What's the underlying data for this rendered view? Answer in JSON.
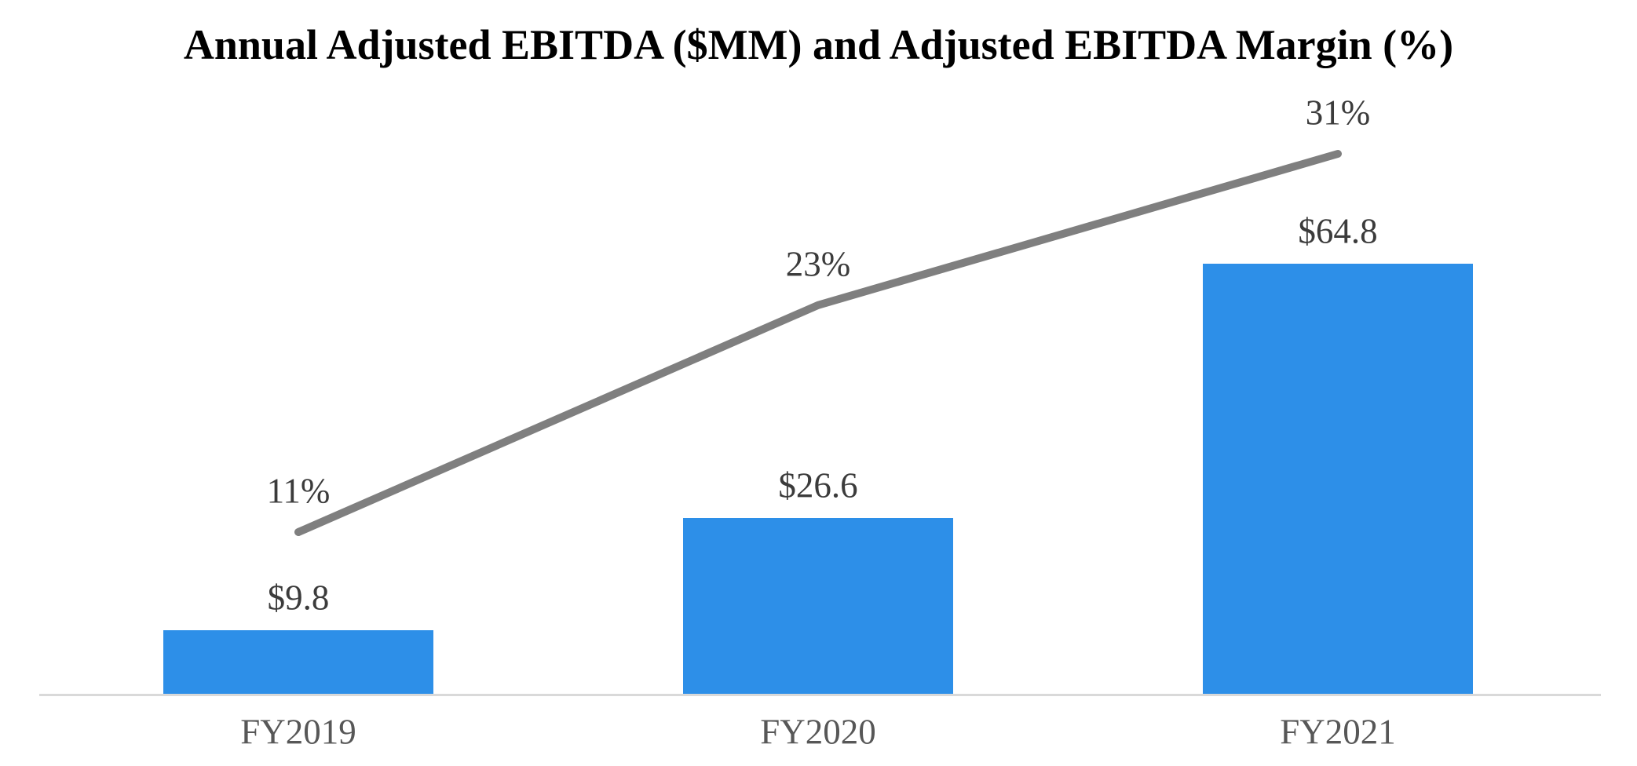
{
  "chart": {
    "title": "Annual Adjusted EBITDA ($MM) and Adjusted EBITDA Margin (%)"
  },
  "chart_data": {
    "type": "bar",
    "combo": "bar+line",
    "title": "Annual Adjusted EBITDA ($MM) and Adjusted EBITDA Margin (%)",
    "categories": [
      "FY2019",
      "FY2020",
      "FY2021"
    ],
    "series": [
      {
        "name": "Annual Adjusted EBITDA ($MM)",
        "type": "bar",
        "axis": "left",
        "values": [
          9.8,
          26.6,
          64.8
        ],
        "labels": [
          "$9.8",
          "$26.6",
          "$64.8"
        ],
        "color": "#2D8FE8"
      },
      {
        "name": "Adjusted EBITDA Margin (%)",
        "type": "line",
        "axis": "right",
        "values": [
          11,
          23,
          31
        ],
        "labels": [
          "11%",
          "23%",
          "31%"
        ],
        "color": "#7F7F7F"
      }
    ],
    "xlabel": "",
    "ylabel": "",
    "legend_position": "none",
    "gridlines": false,
    "axes_visible": {
      "x_baseline": true,
      "y_axis_left": false,
      "y_axis_right": false
    },
    "baseline_color": "#D9D9D9",
    "title_color": "#000000",
    "data_label_color": "#3B3B3B",
    "category_label_color": "#575757",
    "background_color": "#FFFFFF"
  }
}
